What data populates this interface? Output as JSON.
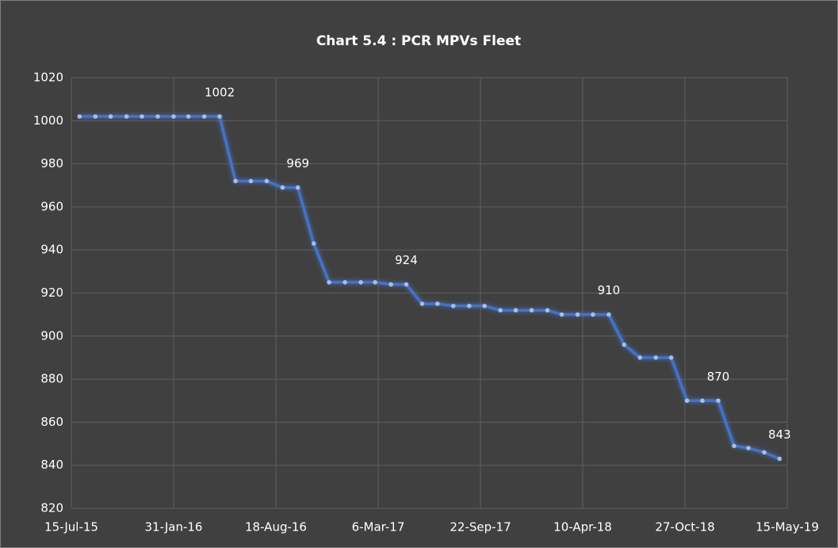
{
  "chart_data": {
    "type": "line",
    "title": "Chart 5.4 : PCR MPVs Fleet",
    "x": [
      "2015-07-31",
      "2015-08-31",
      "2015-09-30",
      "2015-10-31",
      "2015-11-30",
      "2015-12-31",
      "2016-01-31",
      "2016-02-29",
      "2016-03-31",
      "2016-04-30",
      "2016-05-31",
      "2016-06-30",
      "2016-07-31",
      "2016-08-31",
      "2016-09-30",
      "2016-10-31",
      "2016-11-30",
      "2016-12-31",
      "2017-01-31",
      "2017-02-28",
      "2017-03-31",
      "2017-04-30",
      "2017-05-31",
      "2017-06-30",
      "2017-07-31",
      "2017-08-31",
      "2017-09-30",
      "2017-10-31",
      "2017-11-30",
      "2017-12-31",
      "2018-01-31",
      "2018-02-28",
      "2018-03-31",
      "2018-04-30",
      "2018-05-31",
      "2018-06-30",
      "2018-07-31",
      "2018-08-31",
      "2018-09-30",
      "2018-10-31",
      "2018-11-30",
      "2018-12-31",
      "2019-01-31",
      "2019-02-28",
      "2019-03-31",
      "2019-04-30"
    ],
    "series": [
      {
        "name": "PCR MPVs Fleet",
        "color": "#4472c4",
        "values": [
          1002,
          1002,
          1002,
          1002,
          1002,
          1002,
          1002,
          1002,
          1002,
          1002,
          972,
          972,
          972,
          969,
          969,
          943,
          925,
          925,
          925,
          925,
          924,
          924,
          915,
          915,
          914,
          914,
          914,
          912,
          912,
          912,
          912,
          910,
          910,
          910,
          910,
          896,
          890,
          890,
          890,
          870,
          870,
          870,
          849,
          848,
          846,
          843
        ],
        "value_labels": [
          null,
          null,
          null,
          null,
          null,
          null,
          null,
          null,
          null,
          "1002",
          null,
          null,
          null,
          null,
          "969",
          null,
          null,
          null,
          null,
          null,
          null,
          "924",
          null,
          null,
          null,
          null,
          null,
          null,
          null,
          null,
          null,
          null,
          null,
          null,
          "910",
          null,
          null,
          null,
          null,
          null,
          null,
          "870",
          null,
          null,
          null,
          "843"
        ]
      }
    ],
    "xlim": [
      "2015-07-15",
      "2019-05-15"
    ],
    "xticks": [
      {
        "value": "2015-07-15",
        "label": "15-Jul-15"
      },
      {
        "value": "2016-01-31",
        "label": "31-Jan-16"
      },
      {
        "value": "2016-08-18",
        "label": "18-Aug-16"
      },
      {
        "value": "2017-03-06",
        "label": "6-Mar-17"
      },
      {
        "value": "2017-09-22",
        "label": "22-Sep-17"
      },
      {
        "value": "2018-04-10",
        "label": "10-Apr-18"
      },
      {
        "value": "2018-10-27",
        "label": "27-Oct-18"
      },
      {
        "value": "2019-05-15",
        "label": "15-May-19"
      }
    ],
    "ylim": [
      820,
      1020
    ],
    "yticks": [
      820,
      840,
      860,
      880,
      900,
      920,
      940,
      960,
      980,
      1000,
      1020
    ],
    "grid": true
  }
}
